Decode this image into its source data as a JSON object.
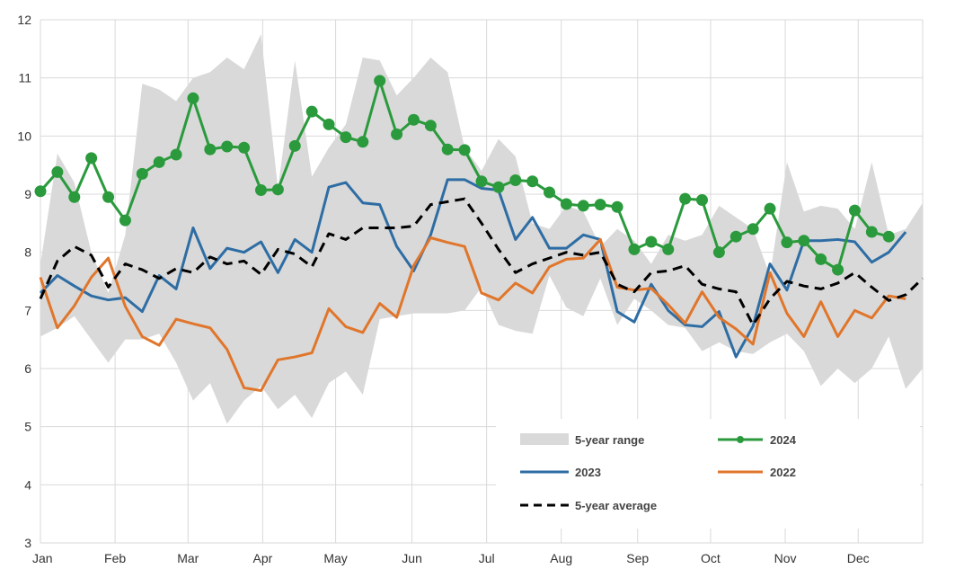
{
  "chart_data": {
    "type": "line",
    "title": "",
    "xlabel": "",
    "ylabel": "",
    "ylim": [
      3,
      12
    ],
    "yticks": [
      3,
      4,
      5,
      6,
      7,
      8,
      9,
      10,
      11,
      12
    ],
    "x_weeks": 52,
    "months": [
      "Jan",
      "Feb",
      "Mar",
      "Apr",
      "May",
      "Jun",
      "Jul",
      "Aug",
      "Sep",
      "Oct",
      "Nov",
      "Dec"
    ],
    "month_start_week": [
      1,
      5.4,
      9.7,
      14.1,
      18.4,
      22.9,
      27.3,
      31.7,
      36.2,
      40.5,
      44.9,
      49.2
    ],
    "grid": true,
    "legend_position": "bottom-right",
    "series": [
      {
        "name": "5-year range",
        "kind": "band",
        "color": "#d9d9d9",
        "max": [
          7.8,
          9.7,
          9.2,
          8.0,
          7.3,
          8.3,
          10.9,
          10.8,
          10.6,
          11.0,
          11.1,
          11.35,
          11.15,
          11.75,
          9.1,
          11.3,
          9.3,
          9.8,
          10.2,
          11.35,
          11.3,
          10.7,
          11.0,
          11.35,
          11.1,
          9.8,
          9.4,
          9.95,
          9.65,
          8.5,
          8.4,
          8.8,
          8.7,
          8.1,
          8.4,
          8.2,
          7.8,
          8.3,
          8.2,
          8.3,
          8.8,
          8.6,
          8.4,
          7.6,
          9.55,
          8.7,
          8.8,
          8.75,
          8.4,
          9.55,
          8.3,
          8.4,
          8.85
        ],
        "min": [
          6.55,
          6.7,
          6.9,
          6.5,
          6.1,
          6.5,
          6.5,
          6.6,
          6.1,
          5.45,
          5.75,
          5.05,
          5.45,
          5.7,
          5.3,
          5.55,
          5.15,
          5.75,
          5.95,
          5.55,
          6.85,
          6.9,
          6.95,
          6.95,
          6.95,
          7.0,
          7.4,
          6.75,
          6.65,
          6.6,
          7.6,
          7.05,
          6.9,
          7.55,
          6.75,
          7.2,
          7.0,
          6.75,
          6.7,
          6.3,
          6.45,
          6.3,
          6.25,
          6.45,
          6.6,
          6.3,
          5.7,
          6.0,
          5.75,
          6.0,
          6.55,
          5.65,
          6.0
        ]
      },
      {
        "name": "2024",
        "kind": "line-markers",
        "color": "#2a9a3c",
        "values": [
          9.05,
          9.38,
          8.95,
          9.62,
          8.95,
          8.55,
          9.35,
          9.55,
          9.68,
          10.65,
          9.77,
          9.82,
          9.8,
          9.07,
          9.08,
          9.83,
          10.42,
          10.2,
          9.98,
          9.9,
          10.95,
          10.03,
          10.28,
          10.18,
          9.77,
          9.76,
          9.22,
          9.12,
          9.24,
          9.22,
          9.03,
          8.83,
          8.8,
          8.82,
          8.78,
          8.05,
          8.18,
          8.05,
          8.92,
          8.9,
          8.0,
          8.27,
          8.4,
          8.75,
          8.17,
          8.2,
          7.88,
          7.7,
          8.72,
          8.35,
          8.27
        ]
      },
      {
        "name": "2023",
        "kind": "line",
        "color": "#2e6da4",
        "values": [
          7.3,
          7.6,
          7.42,
          7.25,
          7.18,
          7.22,
          6.98,
          7.6,
          7.37,
          8.42,
          7.72,
          8.07,
          8.0,
          8.18,
          7.65,
          8.22,
          8.0,
          9.12,
          9.2,
          8.85,
          8.82,
          8.1,
          7.68,
          8.3,
          9.25,
          9.25,
          9.1,
          9.07,
          8.22,
          8.6,
          8.07,
          8.07,
          8.3,
          8.22,
          6.98,
          6.8,
          7.45,
          7.0,
          6.75,
          6.72,
          6.98,
          6.2,
          6.73,
          7.8,
          7.35,
          8.2,
          8.2,
          8.22,
          8.18,
          7.83,
          8.0,
          8.35
        ]
      },
      {
        "name": "2022",
        "kind": "line",
        "color": "#e0762b",
        "values": [
          7.57,
          6.7,
          7.08,
          7.57,
          7.9,
          7.07,
          6.55,
          6.4,
          6.85,
          6.77,
          6.7,
          6.33,
          5.67,
          5.62,
          6.15,
          6.2,
          6.27,
          7.03,
          6.72,
          6.62,
          7.12,
          6.88,
          7.77,
          8.25,
          8.17,
          8.1,
          7.3,
          7.18,
          7.47,
          7.3,
          7.75,
          7.88,
          7.9,
          8.22,
          7.4,
          7.35,
          7.38,
          7.1,
          6.78,
          7.32,
          6.88,
          6.68,
          6.42,
          7.65,
          6.95,
          6.55,
          7.15,
          6.55,
          7.0,
          6.87,
          7.25,
          7.2
        ]
      },
      {
        "name": "5-year average",
        "kind": "dashed",
        "color": "#000000",
        "values": [
          7.2,
          7.85,
          8.1,
          7.95,
          7.4,
          7.8,
          7.7,
          7.55,
          7.72,
          7.65,
          7.92,
          7.8,
          7.85,
          7.62,
          8.05,
          7.97,
          7.75,
          8.32,
          8.22,
          8.42,
          8.42,
          8.42,
          8.45,
          8.82,
          8.87,
          8.92,
          8.5,
          8.05,
          7.65,
          7.8,
          7.9,
          8.0,
          7.95,
          8.0,
          7.45,
          7.32,
          7.65,
          7.68,
          7.77,
          7.45,
          7.37,
          7.32,
          6.75,
          7.2,
          7.5,
          7.42,
          7.37,
          7.47,
          7.65,
          7.4,
          7.17,
          7.27,
          7.55
        ]
      }
    ]
  }
}
